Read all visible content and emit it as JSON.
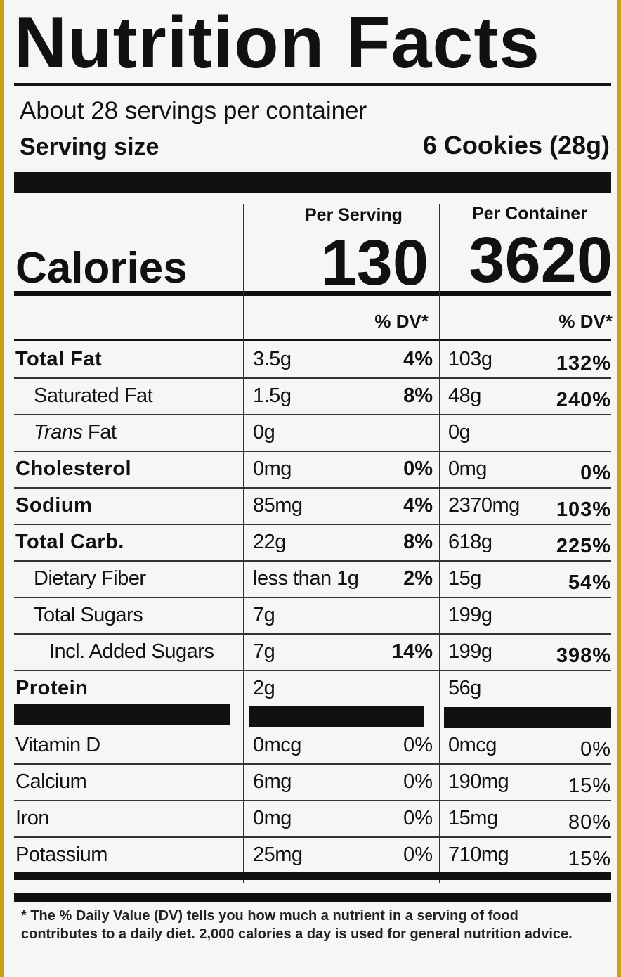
{
  "title": "Nutrition Facts",
  "servings": "About 28 servings per container",
  "serving_size": {
    "label": "Serving size",
    "value": "6 Cookies (28g)"
  },
  "calories": {
    "label": "Calories",
    "per_serving_header": "Per Serving",
    "per_container_header": "Per Container",
    "per_serving": "130",
    "per_container": "3620"
  },
  "dv_header": "% DV*",
  "nutrients": [
    {
      "name": "Total Fat",
      "style": "bold",
      "serving_amount": "3.5g",
      "serving_dv": "4%",
      "container_amount": "103g",
      "container_dv": "132%"
    },
    {
      "name": "Saturated Fat",
      "style": "sub",
      "serving_amount": "1.5g",
      "serving_dv": "8%",
      "container_amount": "48g",
      "container_dv": "240%"
    },
    {
      "prefix": "Trans",
      "name": "Fat",
      "style": "sub",
      "serving_amount": "0g",
      "container_amount": "0g"
    },
    {
      "name": "Cholesterol",
      "style": "bold",
      "serving_amount": "0mg",
      "serving_dv": "0%",
      "container_amount": "0mg",
      "container_dv": "0%"
    },
    {
      "name": "Sodium",
      "style": "bold",
      "serving_amount": "85mg",
      "serving_dv": "4%",
      "container_amount": "2370mg",
      "container_dv": "103%"
    },
    {
      "name": "Total Carb.",
      "style": "bold",
      "serving_amount": "22g",
      "serving_dv": "8%",
      "container_amount": "618g",
      "container_dv": "225%"
    },
    {
      "name": "Dietary Fiber",
      "style": "sub",
      "serving_amount": "less than 1g",
      "serving_dv": "2%",
      "container_amount": "15g",
      "container_dv": "54%"
    },
    {
      "name": "Total Sugars",
      "style": "sub",
      "serving_amount": "7g",
      "container_amount": "199g"
    },
    {
      "name": "Incl. Added Sugars",
      "style": "subsub",
      "serving_amount": "7g",
      "serving_dv": "14%",
      "container_amount": "199g",
      "container_dv": "398%"
    },
    {
      "name": "Protein",
      "style": "bold",
      "serving_amount": "2g",
      "container_amount": "56g"
    }
  ],
  "vitamins": [
    {
      "name": "Vitamin D",
      "serving_amount": "0mcg",
      "serving_dv": "0%",
      "container_amount": "0mcg",
      "container_dv": "0%"
    },
    {
      "name": "Calcium",
      "serving_amount": "6mg",
      "serving_dv": "0%",
      "container_amount": "190mg",
      "container_dv": "15%"
    },
    {
      "name": "Iron",
      "serving_amount": "0mg",
      "serving_dv": "0%",
      "container_amount": "15mg",
      "container_dv": "80%"
    },
    {
      "name": "Potassium",
      "serving_amount": "25mg",
      "serving_dv": "0%",
      "container_amount": "710mg",
      "container_dv": "15%"
    }
  ],
  "footnote": "* The % Daily Value (DV) tells you how much a nutrient in a serving of food contributes to a daily diet. 2,000 calories a day is used for general nutrition advice."
}
